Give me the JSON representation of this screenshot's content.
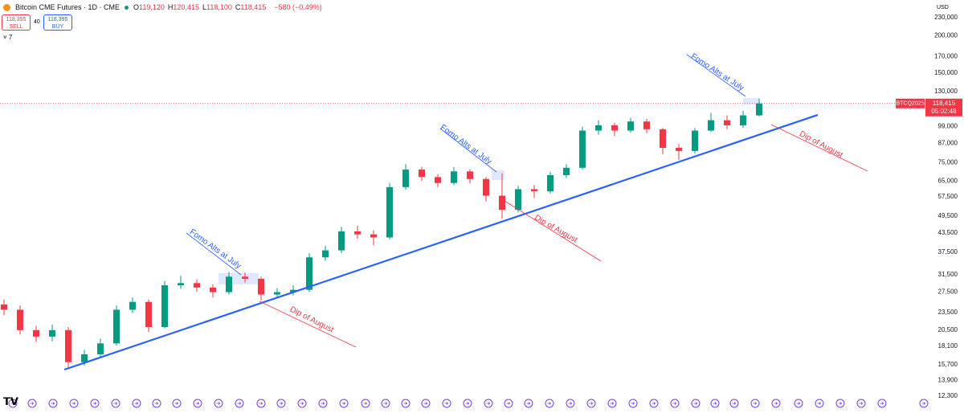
{
  "header": {
    "symbol": "Bitcoin CME Futures · 1D · CME",
    "ohlc": [
      [
        "O",
        "119,120"
      ],
      [
        "H",
        "120,415"
      ],
      [
        "L",
        "118,100"
      ],
      [
        "C",
        "118,415"
      ]
    ],
    "change": "−580 (−0.49%)",
    "sell_price": "118,355",
    "sell": "SELL",
    "spread": "40",
    "buy_price": "118,395",
    "buy": "BUY",
    "indicators": "7",
    "currency": "USD"
  },
  "chart_data": {
    "type": "candlestick",
    "log_scale": true,
    "up_color": "#089981",
    "down_color": "#f23645",
    "trend_color": "#2962ff",
    "open": [
      25000,
      24000,
      20500,
      19500,
      20500,
      16000,
      17000,
      18500,
      24000,
      25500,
      21000,
      29000,
      29500,
      28500,
      27500,
      31000,
      30500,
      27000,
      27500,
      28000,
      36000,
      38000,
      44000,
      43000,
      42000,
      62000,
      71000,
      67000,
      64000,
      70000,
      66000,
      58000,
      52000,
      61000,
      60000,
      68000,
      72000,
      96000,
      100000,
      96000,
      103000,
      97000,
      84000,
      82000,
      96000,
      104000,
      100000,
      108000
    ],
    "high": [
      26000,
      24800,
      21200,
      21400,
      21000,
      17600,
      19200,
      24800,
      26400,
      26000,
      30000,
      31200,
      30400,
      29200,
      32200,
      32000,
      31000,
      28400,
      29000,
      37200,
      39400,
      45600,
      46000,
      44400,
      64000,
      74000,
      72600,
      68400,
      72400,
      71200,
      67000,
      69000,
      62600,
      63000,
      69800,
      74000,
      99000,
      104000,
      102000,
      106000,
      105000,
      98000,
      86500,
      98000,
      110000,
      108000,
      112000,
      123000
    ],
    "low": [
      23000,
      19800,
      18700,
      18800,
      15400,
      15600,
      16600,
      18200,
      23400,
      20200,
      20800,
      28200,
      27600,
      26400,
      27000,
      29600,
      25800,
      26200,
      26800,
      27600,
      35000,
      37200,
      41600,
      39500,
      41400,
      60800,
      65000,
      62000,
      63000,
      63800,
      55500,
      48500,
      51000,
      57000,
      59000,
      66500,
      71000,
      93000,
      92000,
      94500,
      94000,
      80000,
      76500,
      80500,
      95000,
      97000,
      98000,
      107000
    ],
    "close": [
      24000,
      20500,
      19500,
      20500,
      16000,
      17000,
      18500,
      24000,
      25500,
      21000,
      29000,
      29500,
      28500,
      27500,
      31000,
      30500,
      27000,
      27500,
      28000,
      36000,
      38000,
      44000,
      43000,
      42000,
      62000,
      71000,
      67000,
      64000,
      70000,
      66000,
      58000,
      52000,
      61000,
      60000,
      68000,
      72000,
      96000,
      100000,
      96000,
      103000,
      97000,
      84000,
      82000,
      96000,
      104000,
      100000,
      108000,
      118415
    ],
    "ylim": [
      12300,
      230000
    ],
    "yticks": [
      {
        "value": 230000,
        "label": "230,000"
      },
      {
        "value": 200000,
        "label": "200,000"
      },
      {
        "value": 170000,
        "label": "170,000"
      },
      {
        "value": 150000,
        "label": "150,000"
      },
      {
        "value": 130000,
        "label": "130,000"
      },
      {
        "value": 99000,
        "label": "99,000"
      },
      {
        "value": 87000,
        "label": "87,000"
      },
      {
        "value": 75000,
        "label": "75,000"
      },
      {
        "value": 65000,
        "label": "65,000"
      },
      {
        "value": 57500,
        "label": "57,500"
      },
      {
        "value": 49500,
        "label": "49,500"
      },
      {
        "value": 43500,
        "label": "43,500"
      },
      {
        "value": 37500,
        "label": "37,500"
      },
      {
        "value": 31500,
        "label": "31,500"
      },
      {
        "value": 27500,
        "label": "27,500"
      },
      {
        "value": 23500,
        "label": "23,500"
      },
      {
        "value": 20500,
        "label": "20,500"
      },
      {
        "value": 18100,
        "label": "18,100"
      },
      {
        "value": 15700,
        "label": "15,700"
      },
      {
        "value": 13900,
        "label": "13,900"
      },
      {
        "value": 12300,
        "label": "12,300"
      }
    ],
    "last_price": {
      "value": 118415,
      "label": "118,415"
    },
    "last_symbol": "BTCQ2025",
    "countdown": "05:02:48",
    "annotations": [
      "Fomo Alts at July",
      "Dip of August",
      "Fomo Alts at July",
      "Dip of August",
      "Fomo Alts at July",
      "Dip of August"
    ]
  }
}
